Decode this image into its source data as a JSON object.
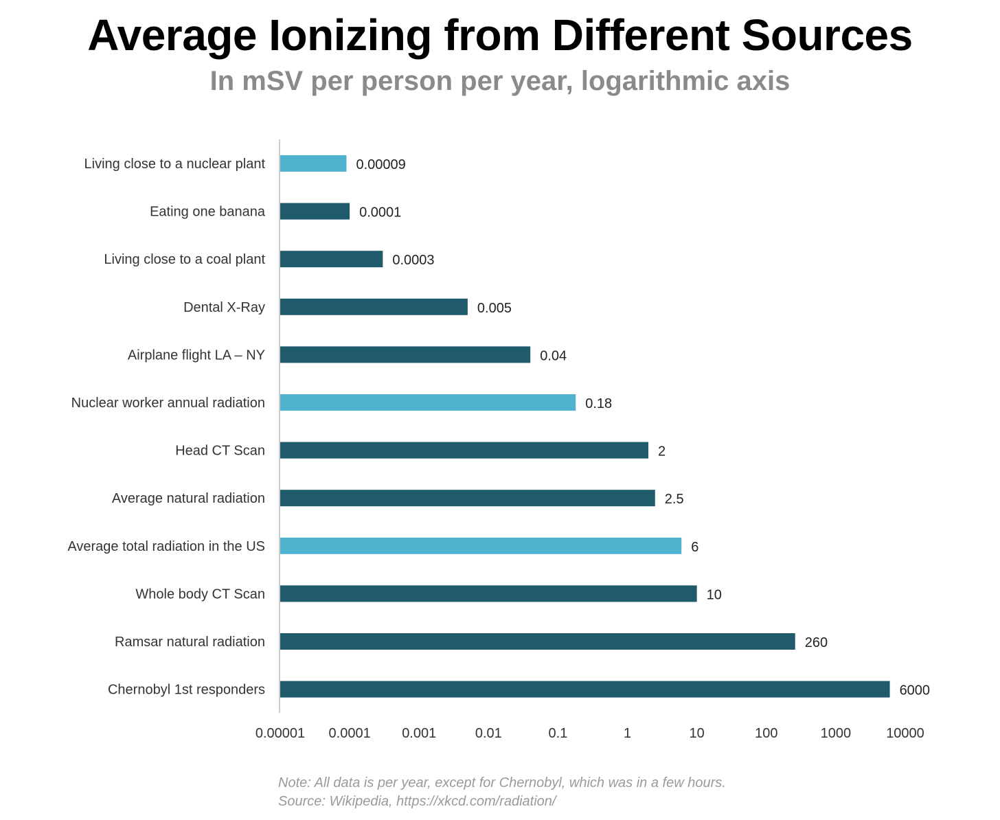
{
  "chart_data": {
    "type": "bar",
    "orientation": "horizontal",
    "title": "Average Ionizing from Different Sources",
    "subtitle": "In mSV per person per year, logarithmic axis",
    "x_scale": "log",
    "xlim": [
      1e-05,
      10000
    ],
    "x_ticks": [
      "0.00001",
      "0.0001",
      "0.001",
      "0.01",
      "0.1",
      "1",
      "10",
      "100",
      "1000",
      "10000"
    ],
    "grid": false,
    "legend": "none",
    "categories": [
      "Living close to a nuclear plant",
      "Eating one banana",
      "Living close to a coal plant",
      "Dental X-Ray",
      "Airplane flight LA – NY",
      "Nuclear worker annual radiation",
      "Head CT Scan",
      "Average natural radiation",
      "Average total radiation in the US",
      "Whole body CT Scan",
      "Ramsar natural radiation",
      "Chernobyl 1st responders"
    ],
    "values": [
      9e-05,
      0.0001,
      0.0003,
      0.005,
      0.04,
      0.18,
      2,
      2.5,
      6,
      10,
      260,
      6000
    ],
    "value_labels": [
      "0.00009",
      "0.0001",
      "0.0003",
      "0.005",
      "0.04",
      "0.18",
      "2",
      "2.5",
      "6",
      "10",
      "260",
      "6000"
    ],
    "highlighted": [
      true,
      false,
      false,
      false,
      false,
      true,
      false,
      false,
      true,
      false,
      false,
      false
    ],
    "colors": {
      "default": "#1f5b6b",
      "highlight": "#4fb3cf",
      "axis": "#cccccc"
    }
  },
  "footer": {
    "note": "Note: All data is per year, except for Chernobyl, which was in a few hours.",
    "source": "Source: Wikipedia, https://xkcd.com/radiation/"
  }
}
